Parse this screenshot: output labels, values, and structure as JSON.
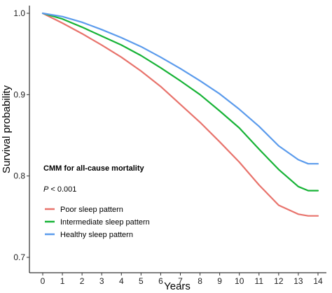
{
  "chart_data": {
    "type": "line",
    "title": "",
    "xlabel": "Years",
    "ylabel": "Survival probability",
    "xlim": [
      0,
      14
    ],
    "ylim": [
      0.7,
      1.0
    ],
    "x_ticks": [
      "0",
      "1",
      "2",
      "3",
      "4",
      "5",
      "6",
      "7",
      "8",
      "9",
      "10",
      "11",
      "12",
      "13",
      "14"
    ],
    "y_ticks": [
      "0.7",
      "0.8",
      "0.9",
      "1.0"
    ],
    "grid": false,
    "legend": {
      "title": "CMM for all-cause mortality",
      "pvalue_label": "P",
      "pvalue_text": " < 0.001",
      "placement": "bottom-left"
    },
    "x": [
      0,
      1,
      2,
      3,
      4,
      5,
      6,
      7,
      8,
      9,
      10,
      11,
      12,
      13,
      13.5,
      14
    ],
    "series": [
      {
        "name": "Poor sleep pattern",
        "color": "#e8736c",
        "values": [
          1.0,
          0.988,
          0.975,
          0.961,
          0.946,
          0.929,
          0.91,
          0.888,
          0.866,
          0.842,
          0.817,
          0.789,
          0.764,
          0.753,
          0.751,
          0.751
        ]
      },
      {
        "name": "Intermediate sleep pattern",
        "color": "#17b336",
        "values": [
          1.0,
          0.993,
          0.983,
          0.972,
          0.961,
          0.948,
          0.933,
          0.917,
          0.9,
          0.88,
          0.859,
          0.833,
          0.808,
          0.787,
          0.782,
          0.782
        ]
      },
      {
        "name": "Healthy sleep pattern",
        "color": "#5b9bec",
        "values": [
          1.0,
          0.996,
          0.989,
          0.98,
          0.97,
          0.959,
          0.946,
          0.932,
          0.917,
          0.901,
          0.882,
          0.861,
          0.837,
          0.82,
          0.815,
          0.815
        ]
      }
    ]
  }
}
